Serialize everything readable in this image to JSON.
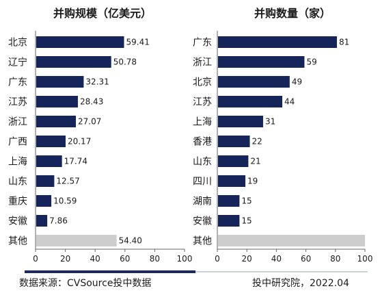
{
  "colors": {
    "bar": "#15255a",
    "other_bar": "#cccccc",
    "axis": "#666666",
    "text": "#1a1a1a"
  },
  "chart_data": [
    {
      "type": "bar",
      "orientation": "horizontal",
      "title": "并购规模（亿美元）",
      "categories": [
        "北京",
        "辽宁",
        "广东",
        "江苏",
        "浙江",
        "广西",
        "上海",
        "山东",
        "重庆",
        "安徽",
        "其他"
      ],
      "values": [
        59.41,
        50.78,
        32.31,
        28.43,
        27.07,
        20.17,
        17.74,
        12.57,
        10.59,
        7.86,
        54.4
      ],
      "value_labels": [
        "59.41",
        "50.78",
        "32.31",
        "28.43",
        "27.07",
        "20.17",
        "17.74",
        "12.57",
        "10.59",
        "7.86",
        "54.40"
      ],
      "xlim": [
        0,
        100
      ],
      "xticks": [
        0,
        20,
        40,
        60,
        80,
        100
      ],
      "grid": false,
      "highlight_category": "其他"
    },
    {
      "type": "bar",
      "orientation": "horizontal",
      "title": "并购数量（家）",
      "categories": [
        "广东",
        "浙江",
        "北京",
        "江苏",
        "上海",
        "香港",
        "山东",
        "四川",
        "湖南",
        "安徽",
        "其他"
      ],
      "values": [
        81,
        59,
        49,
        44,
        31,
        22,
        21,
        19,
        15,
        15,
        100
      ],
      "value_labels": [
        "81",
        "59",
        "49",
        "44",
        "31",
        "22",
        "21",
        "19",
        "15",
        "15",
        ""
      ],
      "xlim": [
        0,
        100
      ],
      "xticks": [
        0,
        20,
        40,
        60,
        80,
        100
      ],
      "grid": false,
      "highlight_category": "其他"
    }
  ],
  "footer": {
    "source": "数据来源：CVSource投中数据",
    "credit": "投中研究院，2022.04"
  }
}
